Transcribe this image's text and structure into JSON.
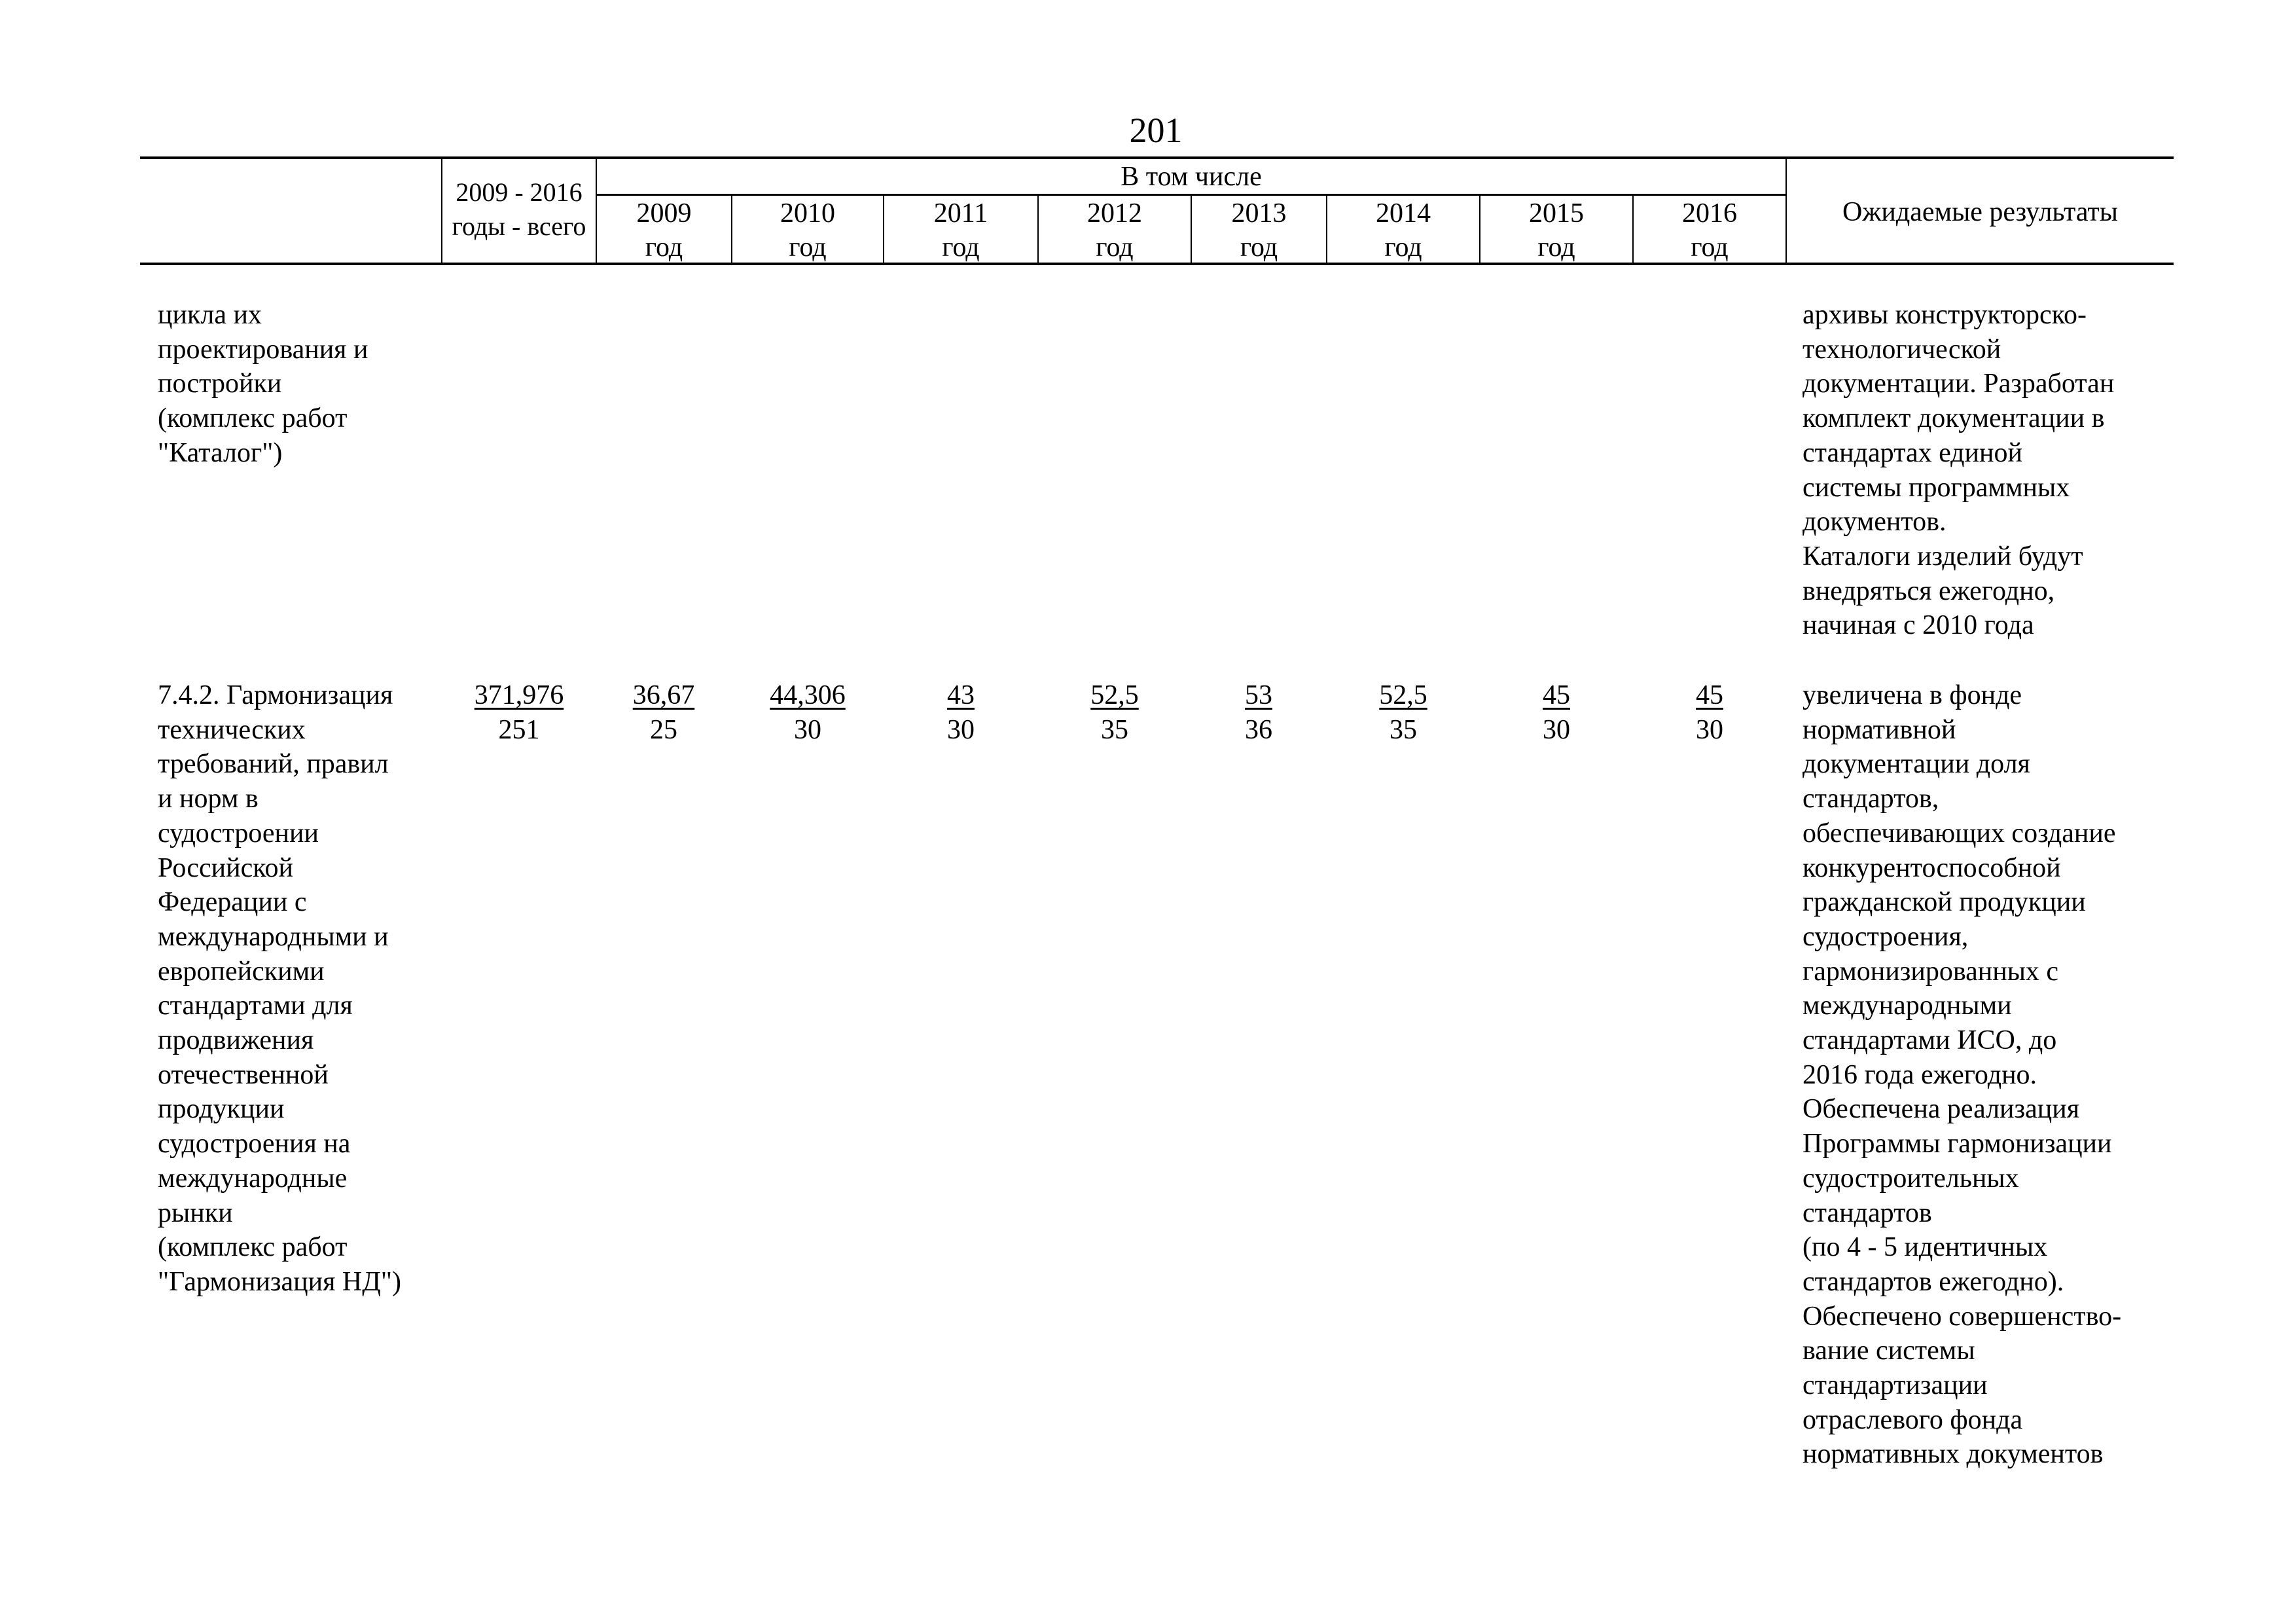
{
  "page_number": "201",
  "header": {
    "total_col": "2009 - 2016\nгоды - всего",
    "including": "В том числе",
    "years": [
      "2009\nгод",
      "2010\nгод",
      "2011\nгод",
      "2012\nгод",
      "2013\nгод",
      "2014\nгод",
      "2015\nгод",
      "2016\nгод"
    ],
    "results": "Ожидаемые результаты"
  },
  "rows": [
    {
      "name": "цикла их\nпроектирования и\nпостройки\n(комплекс работ\n\"Каталог\")",
      "results": "архивы конструкторско-\nтехнологической\nдокументации. Разработан\nкомплект документации в\nстандартах единой\nсистемы программных\nдокументов.\nКаталоги изделий будут\nвнедряться ежегодно,\nначиная с 2010 года"
    },
    {
      "name": "7.4.2. Гармонизация\nтехнических\nтребований, правил\nи норм в\nсудостроении\nРоссийской\nФедерации с\nмеждународными и\nевропейскими\nстандартами для\nпродвижения\nотечественной\nпродукции\nсудостроения на\nмеждународные\nрынки\n(комплекс работ\n\"Гармонизация НД\")",
      "values_top": [
        "371,976",
        "36,67",
        "44,306",
        "43",
        "52,5",
        "53",
        "52,5",
        "45",
        "45"
      ],
      "values_bottom": [
        "251",
        "25",
        "30",
        "30",
        "35",
        "36",
        "35",
        "30",
        "30"
      ],
      "results": "увеличена в фонде\nнормативной\nдокументации доля\nстандартов,\nобеспечивающих создание\nконкурентоспособной\nгражданской продукции\nсудостроения,\nгармонизированных с\nмеждународными\nстандартами ИСО, до\n2016 года ежегодно.\nОбеспечена реализация\nПрограммы гармонизации\nсудостроительных\nстандартов\n(по 4 - 5 идентичных\nстандартов ежегодно).\nОбеспечено совершенство-\nвание системы\nстандартизации\nотраслевого фонда\nнормативных документов"
    }
  ]
}
